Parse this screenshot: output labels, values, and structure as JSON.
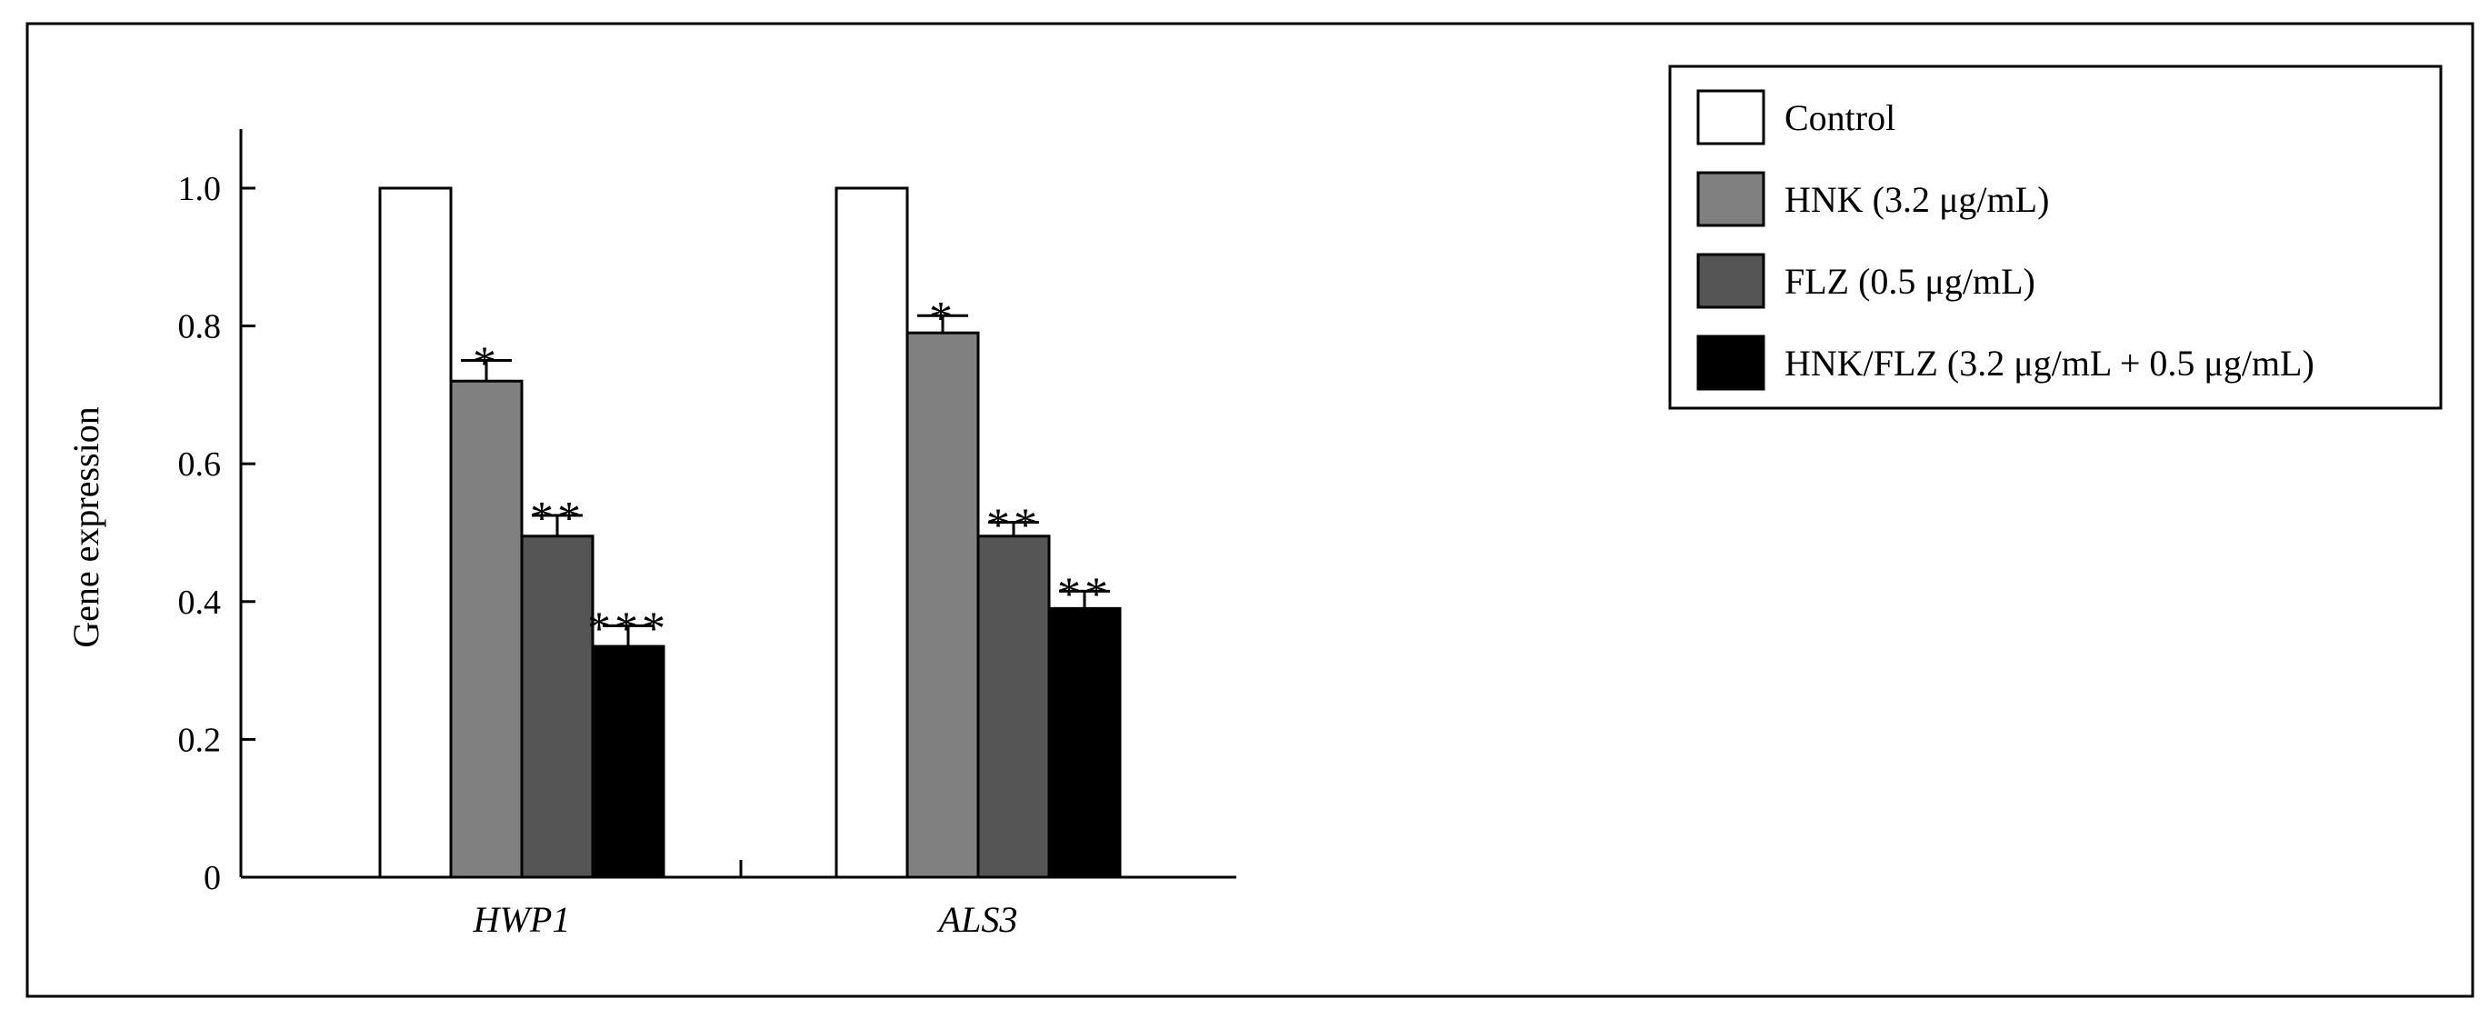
{
  "chart_data": {
    "type": "bar",
    "ylabel": "Gene expression",
    "ylim": [
      0,
      1.0
    ],
    "yticks": [
      {
        "value": 0,
        "label": "0"
      },
      {
        "value": 0.2,
        "label": "0.2"
      },
      {
        "value": 0.4,
        "label": "0.4"
      },
      {
        "value": 0.6,
        "label": "0.6"
      },
      {
        "value": 0.8,
        "label": "0.8"
      },
      {
        "value": 1.0,
        "label": "1.0"
      }
    ],
    "categories": [
      "HWP1",
      "ALS3"
    ],
    "legend_position": "top-right",
    "series": [
      {
        "name": "Control",
        "color": "#ffffff",
        "values": [
          1.0,
          1.0
        ],
        "errors": [
          0,
          0
        ],
        "annotations": [
          "",
          ""
        ]
      },
      {
        "name": "HNK (3.2 μg/mL)",
        "color": "#808080",
        "values": [
          0.72,
          0.79
        ],
        "errors": [
          0.03,
          0.025
        ],
        "annotations": [
          "*",
          "*"
        ]
      },
      {
        "name": "FLZ (0.5 μg/mL)",
        "color": "#555555",
        "values": [
          0.495,
          0.495
        ],
        "errors": [
          0.03,
          0.02
        ],
        "annotations": [
          "**",
          "**"
        ]
      },
      {
        "name": "HNK/FLZ (3.2 μg/mL + 0.5 μg/mL)",
        "color": "#000000",
        "values": [
          0.335,
          0.39
        ],
        "errors": [
          0.03,
          0.025
        ],
        "annotations": [
          "***",
          "**"
        ]
      }
    ]
  }
}
